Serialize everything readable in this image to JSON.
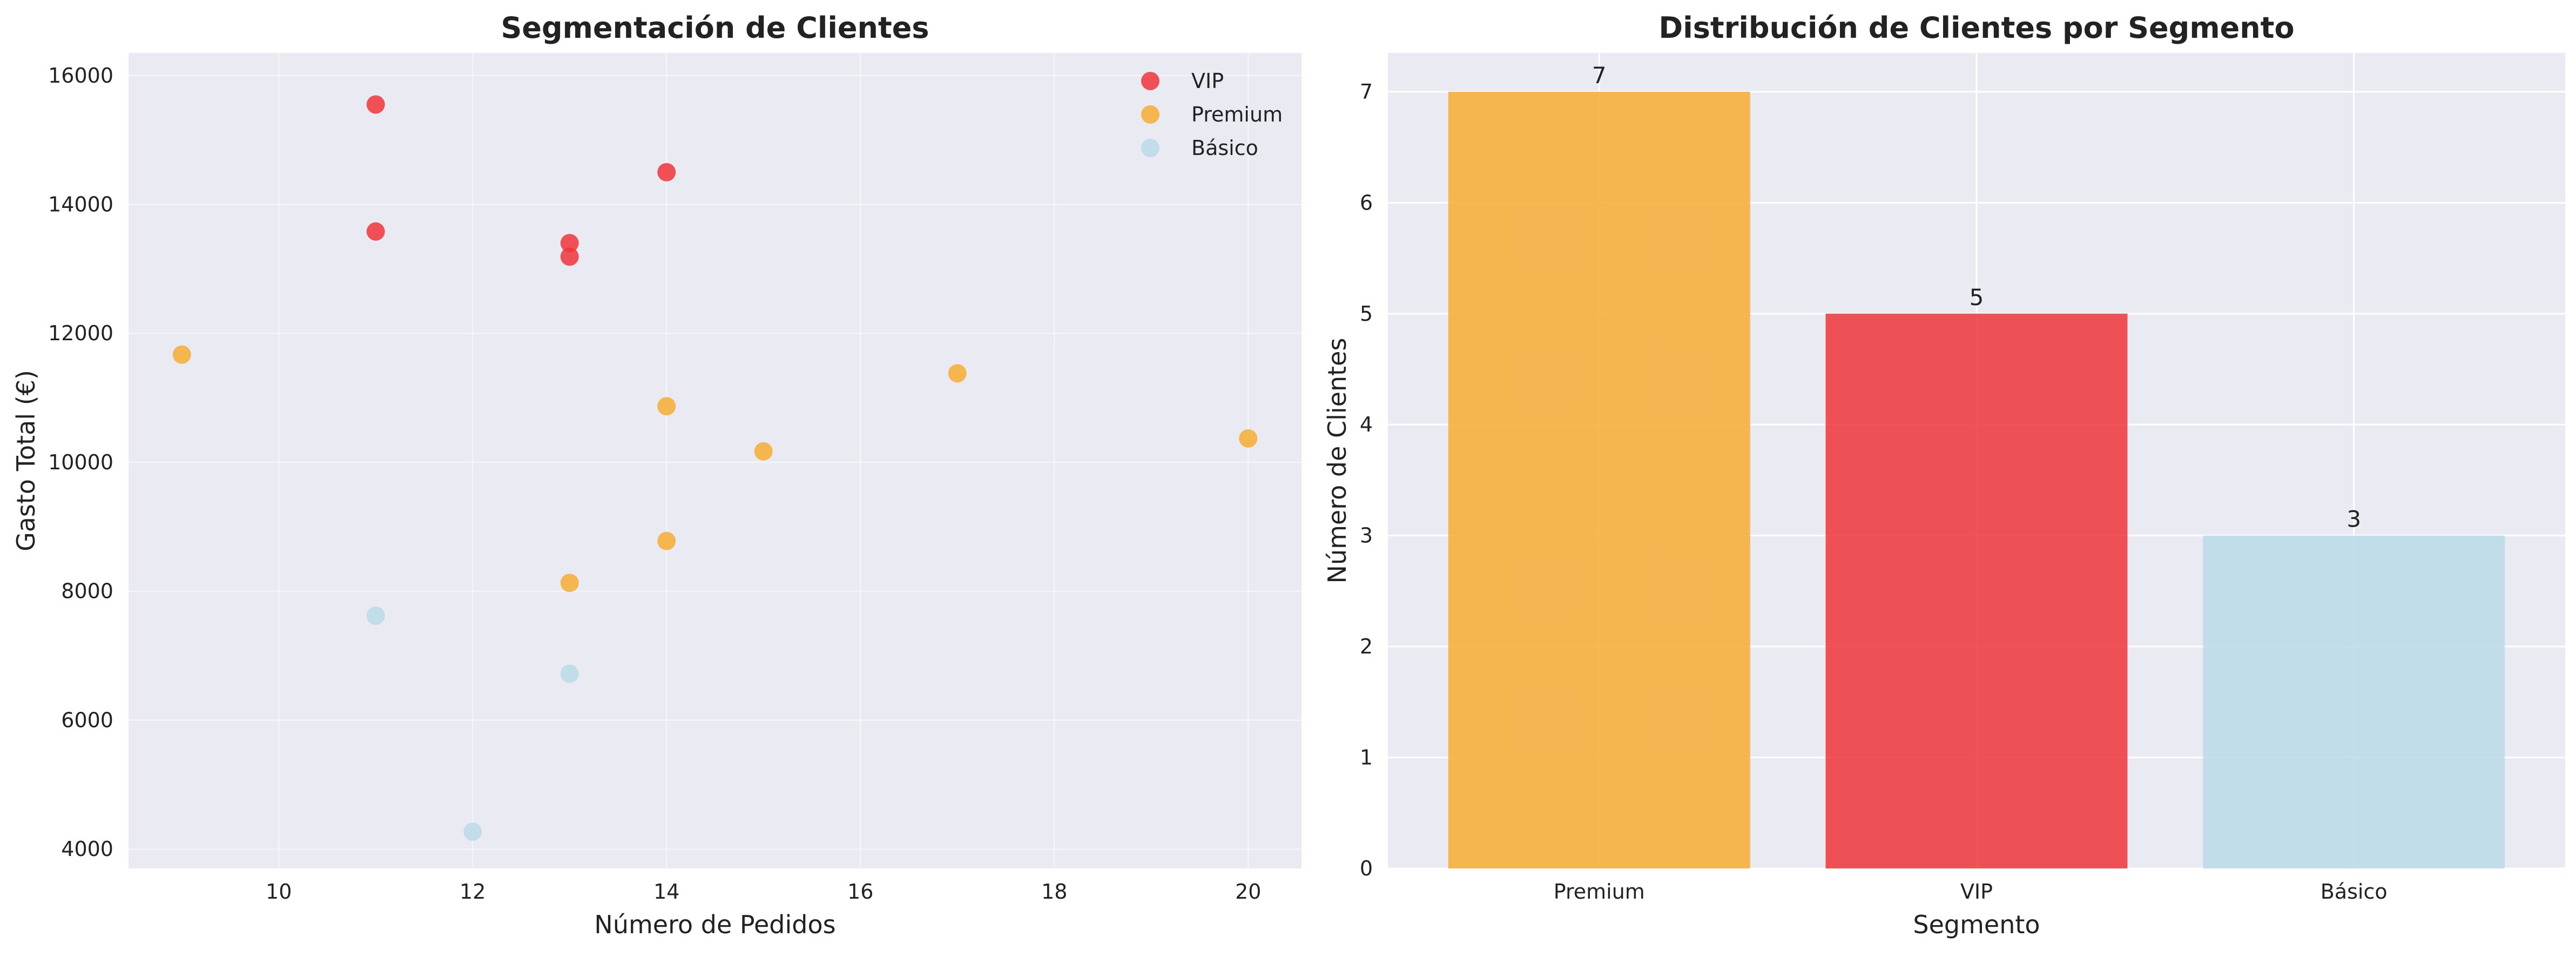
{
  "chart_data": [
    {
      "type": "scatter",
      "title": "Segmentación de Clientes",
      "xlabel": "Número de Pedidos",
      "ylabel": "Gasto Total (€)",
      "xlim": [
        8.45,
        20.55
      ],
      "ylim": [
        3700,
        16350
      ],
      "xticks": [
        10,
        12,
        14,
        16,
        18,
        20
      ],
      "yticks": [
        4000,
        6000,
        8000,
        10000,
        12000,
        14000,
        16000
      ],
      "grid": true,
      "legend_position": "top-right",
      "series": [
        {
          "name": "VIP",
          "color": "#f0353a",
          "points": [
            {
              "x": 11,
              "y": 15550
            },
            {
              "x": 11,
              "y": 13580
            },
            {
              "x": 13,
              "y": 13400
            },
            {
              "x": 13,
              "y": 13190
            },
            {
              "x": 14,
              "y": 14500
            }
          ]
        },
        {
          "name": "Premium",
          "color": "#f7ac33",
          "points": [
            {
              "x": 9,
              "y": 11670
            },
            {
              "x": 14,
              "y": 10870
            },
            {
              "x": 15,
              "y": 10170
            },
            {
              "x": 17,
              "y": 11380
            },
            {
              "x": 20,
              "y": 10370
            },
            {
              "x": 14,
              "y": 8780
            },
            {
              "x": 13,
              "y": 8130
            }
          ]
        },
        {
          "name": "Básico",
          "color": "#b8dbe7",
          "points": [
            {
              "x": 11,
              "y": 7620
            },
            {
              "x": 13,
              "y": 6720
            },
            {
              "x": 12,
              "y": 4270
            }
          ]
        }
      ]
    },
    {
      "type": "bar",
      "title": "Distribución de Clientes por Segmento",
      "xlabel": "Segmento",
      "ylabel": "Número de Clientes",
      "categories": [
        "Premium",
        "VIP",
        "Básico"
      ],
      "values": [
        7,
        5,
        3
      ],
      "data_labels": [
        "7",
        "5",
        "3"
      ],
      "colors": [
        "#f7ac33",
        "#f0353a",
        "#b8dbe7"
      ],
      "ylim": [
        0,
        7.35
      ],
      "yticks": [
        0,
        1,
        2,
        3,
        4,
        5,
        6,
        7
      ],
      "grid": true
    }
  ]
}
